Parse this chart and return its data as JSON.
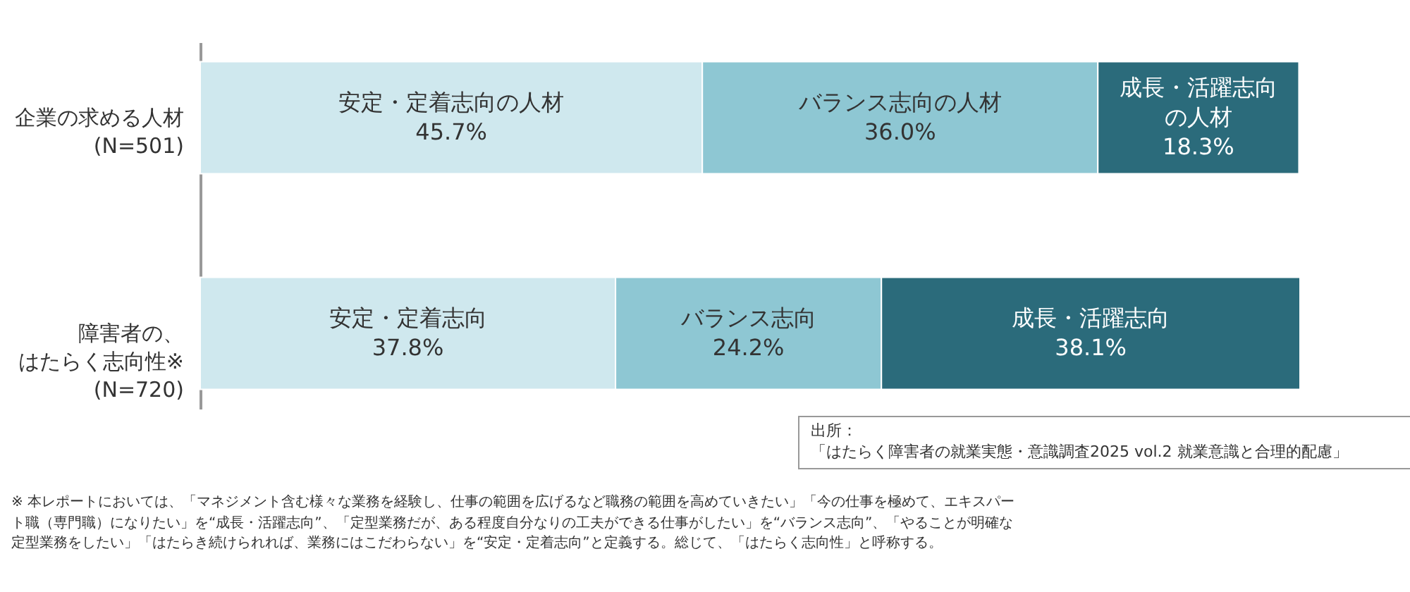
{
  "chart_data": {
    "type": "bar",
    "orientation": "horizontal",
    "stacked": true,
    "tick_labels": "y",
    "legend": false,
    "grid": false,
    "categories": [
      "企業の求める人材(N=501)",
      "障害者の、はたらく志向性※(N=720)"
    ],
    "series": [
      {
        "color": "#cfe8ee",
        "values": [
          45.7,
          37.8
        ],
        "value_labels": [
          "安定・定着志向の人材 45.7%",
          "安定・定着志向 37.8%"
        ]
      },
      {
        "color": "#8ec7d3",
        "values": [
          36.0,
          24.2
        ],
        "value_labels": [
          "バランス志向の人材 36.0%",
          "バランス志向 24.2%"
        ]
      },
      {
        "color": "#2b6b7b",
        "values": [
          18.3,
          38.1
        ],
        "value_labels": [
          "成長・活躍志向の人材 18.3%",
          "成長・活躍志向 38.1%"
        ]
      }
    ],
    "annotations": [
      "出所：「はたらく障害者の就業実態・意識調査2025 vol.2 就業意識と合理的配慮」",
      "※ 本レポートにおいては、「マネジメント含む様々な業務を経験し、仕事の範囲を広げるなど職務の範囲を高めていきたい」「今の仕事を極めて、エキスパート職（専門職）になりたい」を“成長・活躍志向”、「定型業務だが、ある程度自分なりの工夫ができる仕事がしたい」を“バランス志向”、「やることが明確な定型業務をしたい」「はたらき続けられれば、業務にはこだわらない」を“安定・定着志向”と定義する。総じて、「はたらく志向性」と呼称する。"
    ]
  }
}
